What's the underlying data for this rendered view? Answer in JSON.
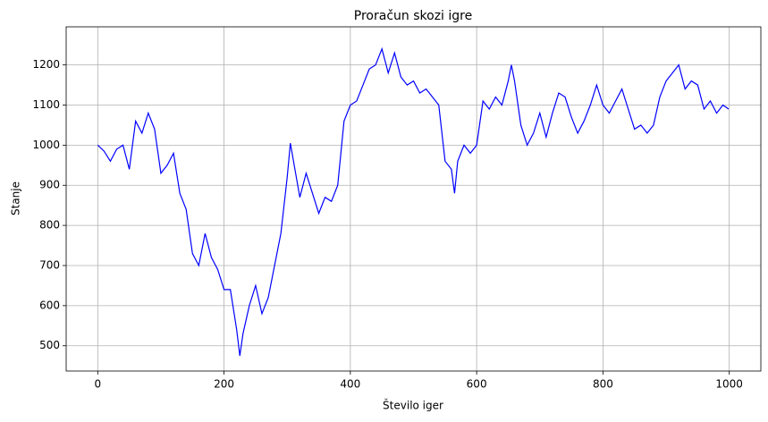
{
  "chart_data": {
    "type": "line",
    "title": "Proračun skozi igre",
    "xlabel": "Število iger",
    "ylabel": "Stanje",
    "x": [
      0,
      10,
      20,
      30,
      40,
      50,
      60,
      70,
      80,
      90,
      100,
      110,
      120,
      130,
      140,
      150,
      160,
      170,
      180,
      190,
      200,
      210,
      220,
      225,
      230,
      240,
      250,
      260,
      270,
      280,
      290,
      300,
      305,
      310,
      320,
      330,
      340,
      350,
      360,
      370,
      380,
      390,
      400,
      410,
      420,
      430,
      440,
      450,
      460,
      470,
      480,
      490,
      500,
      510,
      520,
      530,
      540,
      550,
      560,
      565,
      570,
      580,
      590,
      600,
      610,
      620,
      630,
      640,
      650,
      655,
      660,
      670,
      680,
      690,
      700,
      710,
      720,
      730,
      740,
      750,
      760,
      770,
      780,
      790,
      800,
      810,
      820,
      830,
      840,
      850,
      860,
      870,
      880,
      890,
      900,
      910,
      920,
      930,
      940,
      950,
      960,
      970,
      980,
      990,
      999
    ],
    "series": [
      {
        "color": "#0000ff",
        "values": [
          1000,
          985,
          960,
          990,
          1000,
          940,
          1060,
          1030,
          1080,
          1040,
          930,
          950,
          980,
          880,
          840,
          730,
          700,
          780,
          720,
          690,
          640,
          640,
          540,
          475,
          530,
          600,
          650,
          580,
          620,
          700,
          780,
          920,
          1005,
          960,
          870,
          930,
          880,
          830,
          870,
          860,
          900,
          1060,
          1100,
          1110,
          1150,
          1190,
          1200,
          1240,
          1180,
          1230,
          1170,
          1150,
          1160,
          1130,
          1140,
          1120,
          1100,
          960,
          940,
          880,
          960,
          1000,
          980,
          1000,
          1110,
          1090,
          1120,
          1100,
          1160,
          1200,
          1160,
          1050,
          1000,
          1030,
          1080,
          1020,
          1080,
          1130,
          1120,
          1070,
          1030,
          1060,
          1100,
          1150,
          1100,
          1080,
          1110,
          1140,
          1090,
          1040,
          1050,
          1030,
          1050,
          1120,
          1160,
          1180,
          1200,
          1140,
          1160,
          1150,
          1090,
          1110,
          1080,
          1100,
          1090
        ]
      }
    ],
    "xlim": [
      -50,
      1050
    ],
    "ylim": [
      437,
      1295
    ],
    "xticks": [
      0,
      200,
      400,
      600,
      800,
      1000
    ],
    "yticks": [
      500,
      600,
      700,
      800,
      900,
      1000,
      1100,
      1200
    ],
    "grid": true
  }
}
